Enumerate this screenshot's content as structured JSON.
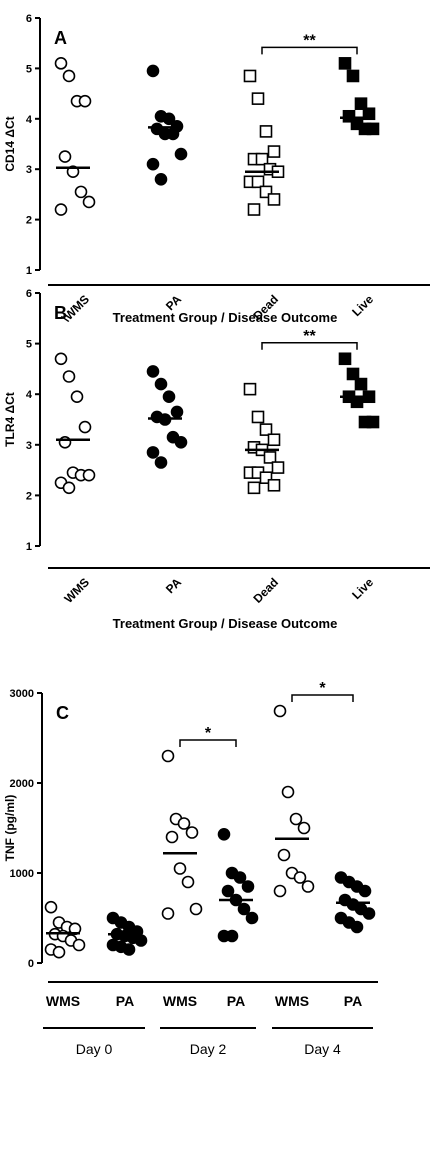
{
  "chart_data": [
    {
      "type": "dotplot",
      "panel_label": "A",
      "y_label": "CD14 ΔCt",
      "x_label": "Treatment Group / Disease Outcome",
      "categories": [
        "\\WMS",
        "PA",
        "Dead",
        "Live"
      ],
      "markers": [
        "open-circle",
        "filled-circle",
        "open-square",
        "filled-square"
      ],
      "values": [
        [
          5.1,
          4.85,
          4.35,
          4.35,
          3.25,
          2.95,
          2.55,
          2.35,
          2.2
        ],
        [
          4.95,
          4.05,
          4.0,
          3.85,
          3.8,
          3.7,
          3.7,
          3.3,
          3.1,
          2.8
        ],
        [
          4.85,
          4.4,
          3.75,
          3.35,
          3.2,
          3.2,
          3.0,
          2.95,
          2.75,
          2.75,
          2.55,
          2.4,
          2.2
        ],
        [
          5.1,
          4.85,
          4.3,
          4.1,
          4.05,
          3.9,
          3.8,
          3.8
        ]
      ],
      "means": [
        3.03,
        3.83,
        2.95,
        4.02
      ],
      "ylim": [
        1,
        6
      ],
      "yticks": [
        1,
        2,
        3,
        4,
        5,
        6
      ],
      "annotations": [
        {
          "text": "**",
          "between": [
            2,
            3
          ]
        }
      ]
    },
    {
      "type": "dotplot",
      "panel_label": "B",
      "y_label": "TLR4 ΔCt",
      "x_label": "Treatment Group / Disease Outcome",
      "categories": [
        "WMS",
        "PA",
        "Dead",
        "Live"
      ],
      "markers": [
        "open-circle",
        "filled-circle",
        "open-square",
        "filled-square"
      ],
      "values": [
        [
          4.7,
          4.35,
          3.95,
          3.35,
          3.05,
          2.45,
          2.4,
          2.4,
          2.25,
          2.15
        ],
        [
          4.45,
          4.2,
          3.95,
          3.65,
          3.55,
          3.5,
          3.15,
          3.05,
          2.85,
          2.65
        ],
        [
          4.1,
          3.55,
          3.3,
          3.1,
          2.95,
          2.9,
          2.75,
          2.55,
          2.45,
          2.45,
          2.35,
          2.2,
          2.15
        ],
        [
          4.7,
          4.4,
          4.2,
          3.95,
          3.95,
          3.85,
          3.45,
          3.45
        ]
      ],
      "means": [
        3.1,
        3.52,
        2.9,
        3.95
      ],
      "ylim": [
        1,
        6
      ],
      "yticks": [
        1,
        2,
        3,
        4,
        5,
        6
      ],
      "annotations": [
        {
          "text": "**",
          "between": [
            2,
            3
          ]
        }
      ]
    },
    {
      "type": "dotplot",
      "panel_label": "C",
      "y_label": "TNF (pg/ml)",
      "categories": [
        "WMS",
        "PA",
        "WMS",
        "PA",
        "WMS",
        "PA"
      ],
      "groups": [
        "Day 0",
        "Day 2",
        "Day 4"
      ],
      "markers": [
        "open-circle",
        "filled-circle",
        "open-circle",
        "filled-circle",
        "open-circle",
        "filled-circle"
      ],
      "values": [
        [
          620,
          450,
          400,
          380,
          320,
          300,
          250,
          200,
          150,
          120
        ],
        [
          500,
          450,
          400,
          350,
          320,
          300,
          280,
          250,
          200,
          180,
          150
        ],
        [
          2300,
          1600,
          1550,
          1450,
          1400,
          1050,
          900,
          600,
          550
        ],
        [
          1430,
          1000,
          950,
          850,
          800,
          700,
          600,
          500,
          300,
          300
        ],
        [
          2800,
          1900,
          1600,
          1500,
          1200,
          1000,
          950,
          850,
          800
        ],
        [
          950,
          900,
          850,
          800,
          700,
          650,
          600,
          550,
          500,
          450,
          400
        ]
      ],
      "means": [
        330,
        320,
        1220,
        700,
        1380,
        670
      ],
      "ylim": [
        0,
        3000
      ],
      "yticks": [
        0,
        1000,
        2000,
        3000
      ],
      "annotations": [
        {
          "text": "*",
          "between": [
            2,
            3
          ]
        },
        {
          "text": "*",
          "between": [
            4,
            5
          ]
        }
      ]
    }
  ]
}
